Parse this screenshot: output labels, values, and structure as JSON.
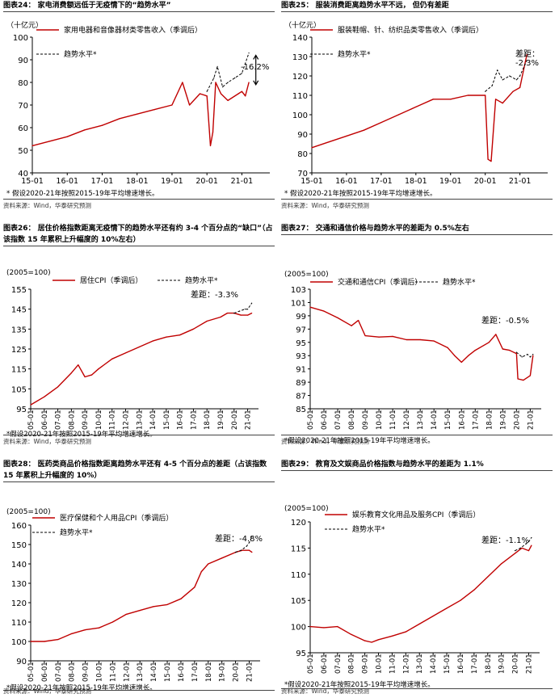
{
  "colors": {
    "series": "#c00000",
    "trend": "#000000",
    "axis": "#000000"
  },
  "chart_data": [
    {
      "type": "line",
      "title": "图表24：  家电消费额远低于无疫情下的“趋势水平”",
      "unit": "（十亿元）",
      "series": [
        {
          "name": "家用电器和音像器材类零售收入（季调后）",
          "style": "solid",
          "x": [
            2015.0,
            2015.5,
            2016.0,
            2016.5,
            2017.0,
            2017.5,
            2018.0,
            2018.5,
            2019.0,
            2019.3,
            2019.5,
            2019.8,
            2020.0,
            2020.1,
            2020.17,
            2020.25,
            2020.4,
            2020.6,
            2020.9,
            2021.0,
            2021.1,
            2021.2
          ],
          "y": [
            52,
            54,
            56,
            59,
            61,
            64,
            66,
            68,
            70,
            80,
            70,
            75,
            74,
            52,
            58,
            80,
            75,
            72,
            75,
            76,
            74,
            80
          ]
        },
        {
          "name": "趋势水平*",
          "style": "dashed",
          "x": [
            2020.0,
            2020.2,
            2020.3,
            2020.45,
            2020.6,
            2020.8,
            2021.0,
            2021.2
          ],
          "y": [
            76,
            82,
            87,
            78,
            80,
            82,
            84,
            93
          ]
        }
      ],
      "xticks": [
        "15-01",
        "16-01",
        "17-01",
        "18-01",
        "19-01",
        "20-01",
        "21-01"
      ],
      "xtick_pos": [
        2015,
        2016,
        2017,
        2018,
        2019,
        2020,
        2021
      ],
      "xlim": [
        2015,
        2021.8
      ],
      "yticks": [
        40,
        50,
        60,
        70,
        80,
        90,
        100
      ],
      "ylim": [
        40,
        100
      ],
      "annotation": "-16.2%",
      "note": "* 假设2020-21年按照2015-19年平均增速增长。",
      "source": "资料来源：Wind，华泰研究预测"
    },
    {
      "type": "line",
      "title": "图表25：  服装消费距离趋势水平不远，  但仍有差距",
      "unit": "（十亿元）",
      "series": [
        {
          "name": "服装鞋帽、针、纺织品类零售收入（季调后）",
          "style": "solid",
          "x": [
            2015.0,
            2015.5,
            2016.0,
            2016.5,
            2017.0,
            2017.5,
            2018.0,
            2018.5,
            2019.0,
            2019.5,
            2020.0,
            2020.08,
            2020.17,
            2020.3,
            2020.5,
            2020.8,
            2021.0,
            2021.2
          ],
          "y": [
            83,
            86,
            89,
            92,
            96,
            100,
            104,
            108,
            108,
            110,
            110,
            77,
            76,
            108,
            106,
            112,
            114,
            131
          ]
        },
        {
          "name": "趋势水平*",
          "style": "dashed",
          "x": [
            2020.0,
            2020.2,
            2020.35,
            2020.5,
            2020.7,
            2020.9,
            2021.0,
            2021.2
          ],
          "y": [
            112,
            115,
            123,
            118,
            120,
            118,
            120,
            128
          ]
        }
      ],
      "xticks": [
        "15-01",
        "16-01",
        "17-01",
        "18-01",
        "19-01",
        "20-01",
        "21-01"
      ],
      "xtick_pos": [
        2015,
        2016,
        2017,
        2018,
        2019,
        2020,
        2021
      ],
      "xlim": [
        2015,
        2021.8
      ],
      "yticks": [
        70,
        80,
        90,
        100,
        110,
        120,
        130,
        140
      ],
      "ylim": [
        70,
        140
      ],
      "annotation": "差距：\n-2.3%",
      "note": "* 假设2020-21年按照2015-19年平均增速增长。",
      "source": "资料来源：Wind，华泰研究预测"
    },
    {
      "type": "line",
      "title": "图表26：  居住价格指数距离无疫情下的趋势水平还有约 3-4 个百分点的“缺口”（占该指数 15 年累积上升幅度的 10%左右）",
      "unit": "(2005=100)",
      "series": [
        {
          "name": "居住CPI（季调后）",
          "style": "solid",
          "x": [
            2005.0,
            2006.0,
            2007.0,
            2008.0,
            2008.5,
            2009.0,
            2009.5,
            2010.0,
            2011.0,
            2012.0,
            2013.0,
            2014.0,
            2015.0,
            2016.0,
            2017.0,
            2018.0,
            2019.0,
            2019.5,
            2020.0,
            2020.5,
            2021.0,
            2021.3
          ],
          "y": [
            97,
            101,
            106,
            113,
            117,
            111,
            112,
            115,
            120,
            123,
            126,
            129,
            131,
            132,
            135,
            139,
            141,
            143,
            143,
            142,
            142,
            143
          ]
        },
        {
          "name": "趋势水平*",
          "style": "dashed",
          "x": [
            2020.0,
            2020.4,
            2020.8,
            2021.0,
            2021.3
          ],
          "y": [
            143,
            144,
            145,
            145,
            148
          ]
        }
      ],
      "xticks": [
        "05-01",
        "06-01",
        "07-01",
        "08-01",
        "09-01",
        "10-01",
        "11-01",
        "12-01",
        "13-01",
        "14-01",
        "15-01",
        "16-01",
        "17-01",
        "18-01",
        "19-01",
        "20-01",
        "21-01"
      ],
      "xtick_pos": [
        2005,
        2006,
        2007,
        2008,
        2009,
        2010,
        2011,
        2012,
        2013,
        2014,
        2015,
        2016,
        2017,
        2018,
        2019,
        2020,
        2021
      ],
      "xlim": [
        2005,
        2021.8
      ],
      "yticks": [
        95,
        105,
        115,
        125,
        135,
        145,
        155
      ],
      "ylim": [
        95,
        155
      ],
      "annotation": "差距：-3.3%",
      "note": "*假设2020-21年按照2015-19年平均增速增长。",
      "source": "资料来源：Wind，华泰研究预测"
    },
    {
      "type": "line",
      "title": "图表27：  交通和通信价格与趋势水平的差距为 0.5%左右",
      "unit": "(2005=100)",
      "series": [
        {
          "name": "交通和通信CPI（季调后）",
          "style": "solid",
          "x": [
            2005.0,
            2006.0,
            2007.0,
            2008.0,
            2008.5,
            2009.0,
            2010.0,
            2011.0,
            2012.0,
            2013.0,
            2014.0,
            2015.0,
            2015.5,
            2016.0,
            2016.5,
            2017.0,
            2018.0,
            2018.5,
            2019.0,
            2019.5,
            2020.0,
            2020.1,
            2020.5,
            2021.0,
            2021.2
          ],
          "y": [
            100.3,
            99.7,
            98.7,
            97.5,
            98.3,
            96.0,
            95.8,
            95.9,
            95.4,
            95.4,
            95.2,
            94.2,
            93.0,
            92.0,
            93.0,
            93.8,
            95.0,
            96.2,
            94.0,
            93.8,
            93.3,
            89.5,
            89.3,
            90.0,
            93.0
          ]
        },
        {
          "name": "趋势水平*",
          "style": "dashed",
          "x": [
            2020.0,
            2020.4,
            2020.8,
            2021.0,
            2021.2
          ],
          "y": [
            93.5,
            92.8,
            93.2,
            92.8,
            93.2
          ]
        }
      ],
      "xticks": [
        "05-01",
        "06-01",
        "07-01",
        "08-01",
        "09-01",
        "10-01",
        "11-01",
        "12-01",
        "13-01",
        "14-01",
        "15-01",
        "16-01",
        "17-01",
        "18-01",
        "19-01",
        "20-01",
        "21-01"
      ],
      "xtick_pos": [
        2005,
        2006,
        2007,
        2008,
        2009,
        2010,
        2011,
        2012,
        2013,
        2014,
        2015,
        2016,
        2017,
        2018,
        2019,
        2020,
        2021
      ],
      "xlim": [
        2005,
        2021.8
      ],
      "yticks": [
        85,
        87,
        89,
        91,
        93,
        95,
        97,
        99,
        101,
        103
      ],
      "ylim": [
        85,
        103
      ],
      "annotation": "差距：-0.5%",
      "note": "*假设2020-21年按照2015-19年平均增速增长。",
      "source": "资料来源：Wind，华泰研究预测"
    },
    {
      "type": "line",
      "title": "图表28：  医药类商品价格指数距离趋势水平还有 4-5 个百分点的差距（占该指数 15 年累积上升幅度的 10%）",
      "unit": "(2005=100)",
      "series": [
        {
          "name": "医疗保健和个人用品CPI（季调后）",
          "style": "solid",
          "x": [
            2005.0,
            2006.0,
            2007.0,
            2008.0,
            2009.0,
            2010.0,
            2011.0,
            2012.0,
            2013.0,
            2014.0,
            2015.0,
            2016.0,
            2017.0,
            2017.5,
            2018.0,
            2019.0,
            2020.0,
            2020.5,
            2021.0,
            2021.2
          ],
          "y": [
            100,
            100,
            101,
            104,
            106,
            107,
            110,
            114,
            116,
            118,
            119,
            122,
            128,
            136,
            140,
            143,
            146,
            147,
            147,
            146
          ]
        },
        {
          "name": "趋势水平*",
          "style": "dashed",
          "x": [
            2020.0,
            2020.4,
            2020.8,
            2021.0,
            2021.2
          ],
          "y": [
            146,
            147,
            149,
            151,
            154
          ]
        }
      ],
      "xticks": [
        "05-01",
        "06-01",
        "07-01",
        "08-01",
        "09-01",
        "10-01",
        "11-01",
        "12-01",
        "13-01",
        "14-01",
        "15-01",
        "16-01",
        "17-01",
        "18-01",
        "19-01",
        "20-01",
        "21-01"
      ],
      "xtick_pos": [
        2005,
        2006,
        2007,
        2008,
        2009,
        2010,
        2011,
        2012,
        2013,
        2014,
        2015,
        2016,
        2017,
        2018,
        2019,
        2020,
        2021
      ],
      "xlim": [
        2005,
        2021.8
      ],
      "yticks": [
        90,
        100,
        110,
        120,
        130,
        140,
        150,
        160
      ],
      "ylim": [
        90,
        160
      ],
      "annotation": "差距：-4.8%",
      "note": "*假设2020-21年按照2015-19年平均增速增长。",
      "source": "资料来源：Wind，华泰研究预测"
    },
    {
      "type": "line",
      "title": "图表29：  教育及文娱商品价格指数与趋势水平的差距为 1.1%",
      "unit": "(2005=100)",
      "series": [
        {
          "name": "娱乐教育文化用品及服务CPI（季调后）",
          "style": "solid",
          "x": [
            2005.0,
            2006.0,
            2007.0,
            2008.0,
            2009.0,
            2009.5,
            2010.0,
            2011.0,
            2012.0,
            2013.0,
            2014.0,
            2015.0,
            2016.0,
            2017.0,
            2018.0,
            2019.0,
            2020.0,
            2020.5,
            2021.0,
            2021.2
          ],
          "y": [
            100,
            99.8,
            100,
            98.5,
            97.3,
            97.0,
            97.5,
            98.2,
            99.0,
            100.5,
            102,
            103.5,
            105,
            107,
            109.5,
            112,
            114,
            115,
            114.5,
            115.5
          ]
        },
        {
          "name": "趋势水平*",
          "style": "dashed",
          "x": [
            2020.0,
            2020.4,
            2020.8,
            2021.0,
            2021.2
          ],
          "y": [
            114.5,
            115,
            115.8,
            116.2,
            117
          ]
        }
      ],
      "xticks": [
        "05-01",
        "06-01",
        "07-01",
        "08-01",
        "09-01",
        "10-01",
        "11-01",
        "12-01",
        "13-01",
        "14-01",
        "15-01",
        "16-01",
        "17-01",
        "18-01",
        "19-01",
        "20-01",
        "21-01"
      ],
      "xtick_pos": [
        2005,
        2006,
        2007,
        2008,
        2009,
        2010,
        2011,
        2012,
        2013,
        2014,
        2015,
        2016,
        2017,
        2018,
        2019,
        2020,
        2021
      ],
      "xlim": [
        2005,
        2021.8
      ],
      "yticks": [
        95,
        100,
        105,
        110,
        115,
        120
      ],
      "ylim": [
        95,
        120
      ],
      "annotation": "差距：-1.1%",
      "note": "*假设2020-21年按照2015-19年平均增速增长。",
      "source": "资料来源：Wind，华泰研究预测"
    }
  ]
}
